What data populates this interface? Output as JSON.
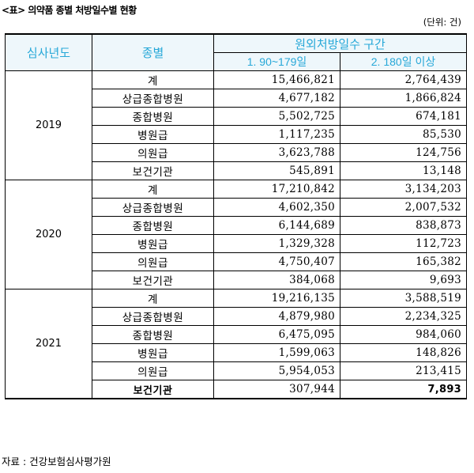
{
  "caption": "<표> 의약품 종별 처방일수별 현황",
  "unit": "(단위: 건)",
  "headers": {
    "year": "심사년도",
    "type": "종별",
    "group": "원외처방일수 구간",
    "col1": "1. 90~179일",
    "col2": "2. 180일 이상"
  },
  "years": [
    {
      "year": "2019",
      "rows": [
        {
          "type": "계",
          "c1": "15,466,821",
          "c2": "2,764,439"
        },
        {
          "type": "상급종합병원",
          "c1": "4,677,182",
          "c2": "1,866,824"
        },
        {
          "type": "종합병원",
          "c1": "5,502,725",
          "c2": "674,181"
        },
        {
          "type": "병원급",
          "c1": "1,117,235",
          "c2": "85,530"
        },
        {
          "type": "의원급",
          "c1": "3,623,788",
          "c2": "124,756"
        },
        {
          "type": "보건기관",
          "c1": "545,891",
          "c2": "13,148"
        }
      ]
    },
    {
      "year": "2020",
      "rows": [
        {
          "type": "계",
          "c1": "17,210,842",
          "c2": "3,134,203"
        },
        {
          "type": "상급종합병원",
          "c1": "4,602,350",
          "c2": "2,007,532"
        },
        {
          "type": "종합병원",
          "c1": "6,144,689",
          "c2": "838,873"
        },
        {
          "type": "병원급",
          "c1": "1,329,328",
          "c2": "112,723"
        },
        {
          "type": "의원급",
          "c1": "4,750,407",
          "c2": "165,382"
        },
        {
          "type": "보건기관",
          "c1": "384,068",
          "c2": "9,693"
        }
      ]
    },
    {
      "year": "2021",
      "rows": [
        {
          "type": "계",
          "c1": "19,216,135",
          "c2": "3,588,519"
        },
        {
          "type": "상급종합병원",
          "c1": "4,879,980",
          "c2": "2,234,325"
        },
        {
          "type": "종합병원",
          "c1": "6,475,095",
          "c2": "984,060"
        },
        {
          "type": "병원급",
          "c1": "1,599,063",
          "c2": "148,826"
        },
        {
          "type": "의원급",
          "c1": "5,954,053",
          "c2": "213,415"
        },
        {
          "type": "보건기관",
          "c1": "307,944",
          "c2": "7,893"
        }
      ]
    }
  ],
  "source": "자료 : 건강보험심사평가원"
}
